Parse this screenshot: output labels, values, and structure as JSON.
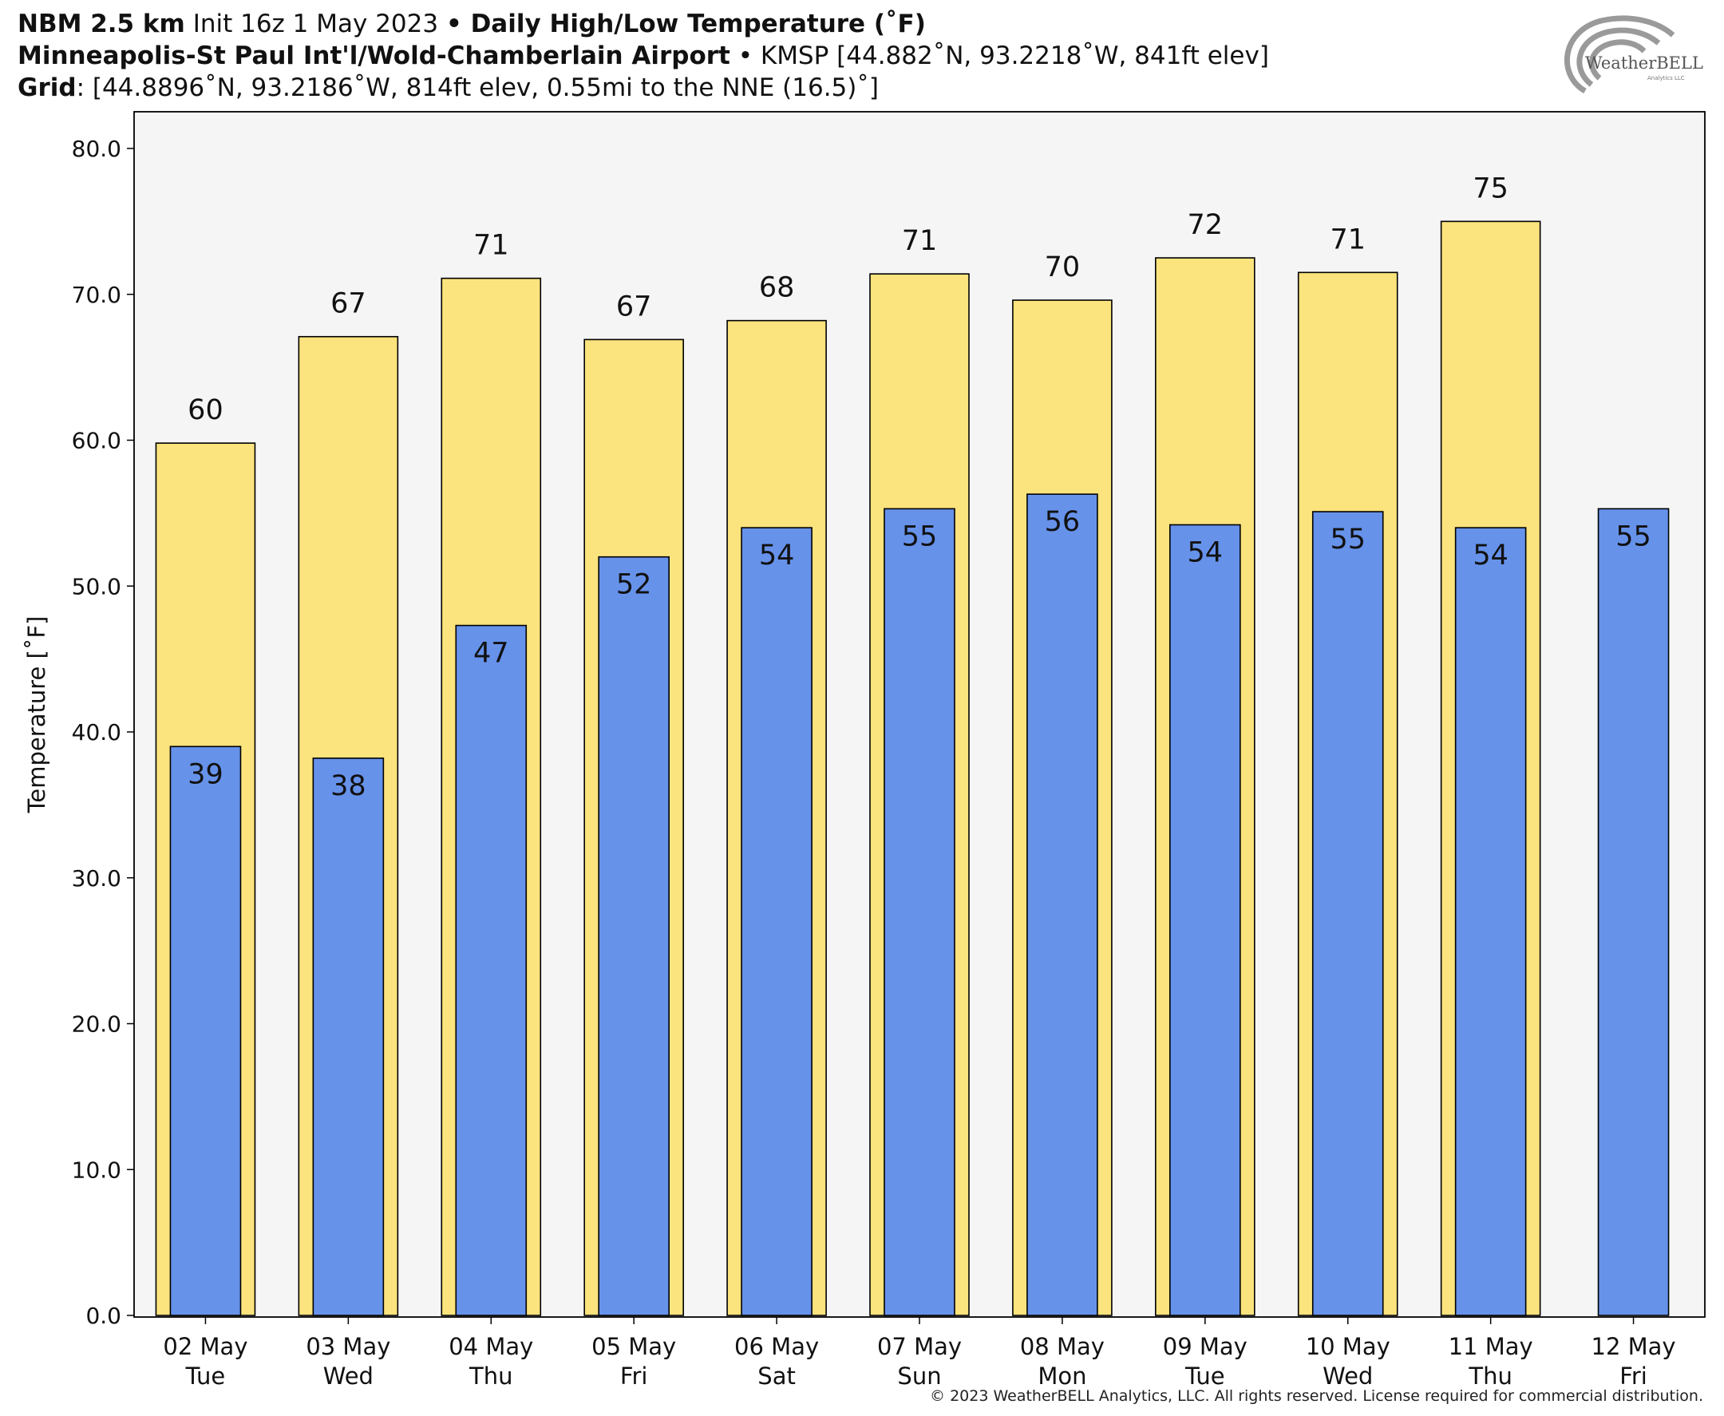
{
  "header": {
    "line1": {
      "model": "NBM 2.5 km",
      "init": " Init 16z 1 May 2023 ",
      "sep": "• ",
      "product": "Daily High/Low Temperature (˚F)"
    },
    "line2": {
      "station": "Minneapolis-St Paul Int'l/Wold-Chamberlain Airport",
      "sep": " • ",
      "info": "KMSP [44.882˚N, 93.2218˚W, 841ft elev]"
    },
    "line3": {
      "label": "Grid",
      "info": ": [44.8896˚N, 93.2186˚W, 814ft elev, 0.55mi to the NNE (16.5)˚]"
    }
  },
  "logo": {
    "text": "WeatherBELL",
    "subtext": "Analytics LLC"
  },
  "footer": {
    "copyright": "© 2023 WeatherBELL Analytics, LLC. All rights reserved. License required for commercial distribution."
  },
  "chart_data": {
    "type": "bar",
    "ylabel": "Temperature [˚F]",
    "ylim": [
      0,
      80
    ],
    "yticks": [
      0,
      10,
      20,
      30,
      40,
      50,
      60,
      70,
      80
    ],
    "ytick_labels": [
      "0.0",
      "10.0",
      "20.0",
      "30.0",
      "40.0",
      "50.0",
      "60.0",
      "70.0",
      "80.0"
    ],
    "grid": false,
    "categories": [
      {
        "date": "02 May",
        "day": "Tue"
      },
      {
        "date": "03 May",
        "day": "Wed"
      },
      {
        "date": "04 May",
        "day": "Thu"
      },
      {
        "date": "05 May",
        "day": "Fri"
      },
      {
        "date": "06 May",
        "day": "Sat"
      },
      {
        "date": "07 May",
        "day": "Sun"
      },
      {
        "date": "08 May",
        "day": "Mon"
      },
      {
        "date": "09 May",
        "day": "Tue"
      },
      {
        "date": "10 May",
        "day": "Wed"
      },
      {
        "date": "11 May",
        "day": "Thu"
      },
      {
        "date": "12 May",
        "day": "Fri"
      }
    ],
    "series": [
      {
        "values": [
          59.8,
          67.1,
          71.1,
          66.9,
          68.2,
          71.4,
          69.6,
          72.5,
          71.5,
          75.0,
          null
        ],
        "labels": [
          "60",
          "67",
          "71",
          "67",
          "68",
          "71",
          "70",
          "72",
          "71",
          "75",
          ""
        ],
        "color": "#fbe37e"
      },
      {
        "values": [
          39.0,
          38.2,
          47.3,
          52.0,
          54.0,
          55.3,
          56.3,
          54.2,
          55.1,
          54.0,
          55.3
        ],
        "labels": [
          "39",
          "38",
          "47",
          "52",
          "54",
          "55",
          "56",
          "54",
          "55",
          "54",
          "55"
        ],
        "color": "#6692ea"
      }
    ],
    "plot_background": "#f5f5f6"
  }
}
